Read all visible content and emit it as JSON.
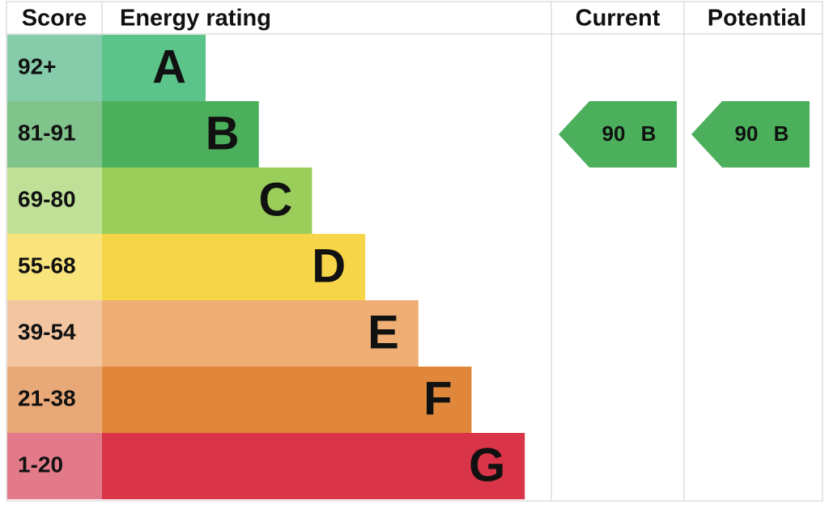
{
  "header": {
    "score": "Score",
    "energy_rating": "Energy rating",
    "current": "Current",
    "potential": "Potential"
  },
  "rows": [
    {
      "score": "92+",
      "rating": "A",
      "color": "#5bc48a",
      "score_color": "#86ccaa"
    },
    {
      "score": "81-91",
      "rating": "B",
      "color": "#4caf5c",
      "score_color": "#80c38b"
    },
    {
      "score": "69-80",
      "rating": "C",
      "color": "#9bcd5a",
      "score_color": "#c0e098"
    },
    {
      "score": "55-68",
      "rating": "D",
      "color": "#f6d548",
      "score_color": "#f9e47c"
    },
    {
      "score": "39-54",
      "rating": "E",
      "color": "#efae74",
      "score_color": "#f3c6a1"
    },
    {
      "score": "21-38",
      "rating": "F",
      "color": "#e0873c",
      "score_color": "#e9a877"
    },
    {
      "score": "1-20",
      "rating": "G",
      "color": "#d93447",
      "score_color": "#e27a8a"
    }
  ],
  "current": {
    "score": 90,
    "rating": "B"
  },
  "potential": {
    "score": 90,
    "rating": "B"
  }
}
